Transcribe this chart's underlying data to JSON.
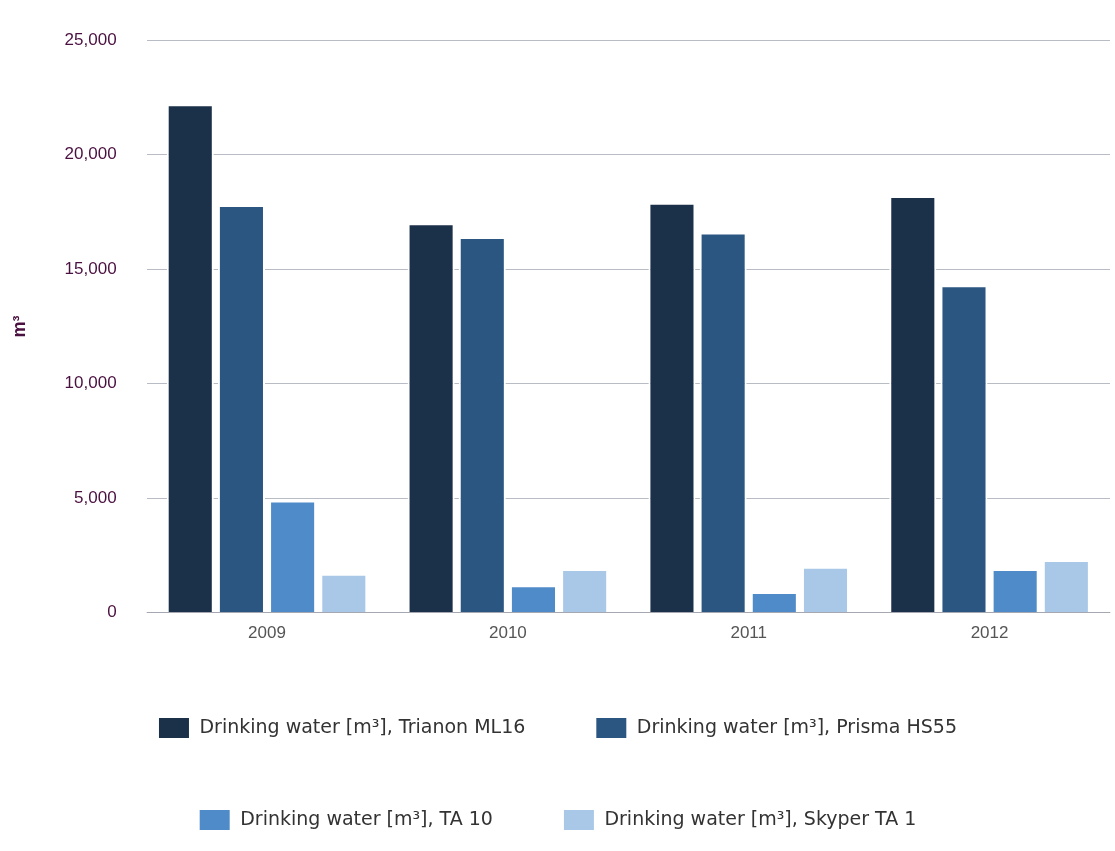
{
  "chart_data": {
    "type": "bar",
    "ylabel": "m³",
    "categories": [
      "2009",
      "2010",
      "2011",
      "2012"
    ],
    "series": [
      {
        "name": "Drinking water [m³], Trianon ML16",
        "color": "#1b3049",
        "values": [
          22200,
          17000,
          17900,
          18200
        ]
      },
      {
        "name": "Drinking water [m³], Prisma HS55",
        "color": "#2b5682",
        "values": [
          17800,
          16400,
          16600,
          14300
        ]
      },
      {
        "name": "Drinking water [m³], TA 10",
        "color": "#4f8bc9",
        "values": [
          4900,
          1200,
          900,
          1900
        ]
      },
      {
        "name": "Drinking water [m³], Skyper TA 1",
        "color": "#a9c8e8",
        "values": [
          1700,
          1900,
          2000,
          2300
        ]
      }
    ],
    "ylim": [
      0,
      25000
    ],
    "yticks": [
      0,
      {
        "value": 5000,
        "label": "5,000"
      },
      {
        "value": 10000,
        "label": "10,000"
      },
      {
        "value": 15000,
        "label": "15,000"
      },
      {
        "value": 20000,
        "label": "20,000"
      },
      {
        "value": 25000,
        "label": "25,000"
      }
    ],
    "grid": "y",
    "legend": "bottom"
  }
}
